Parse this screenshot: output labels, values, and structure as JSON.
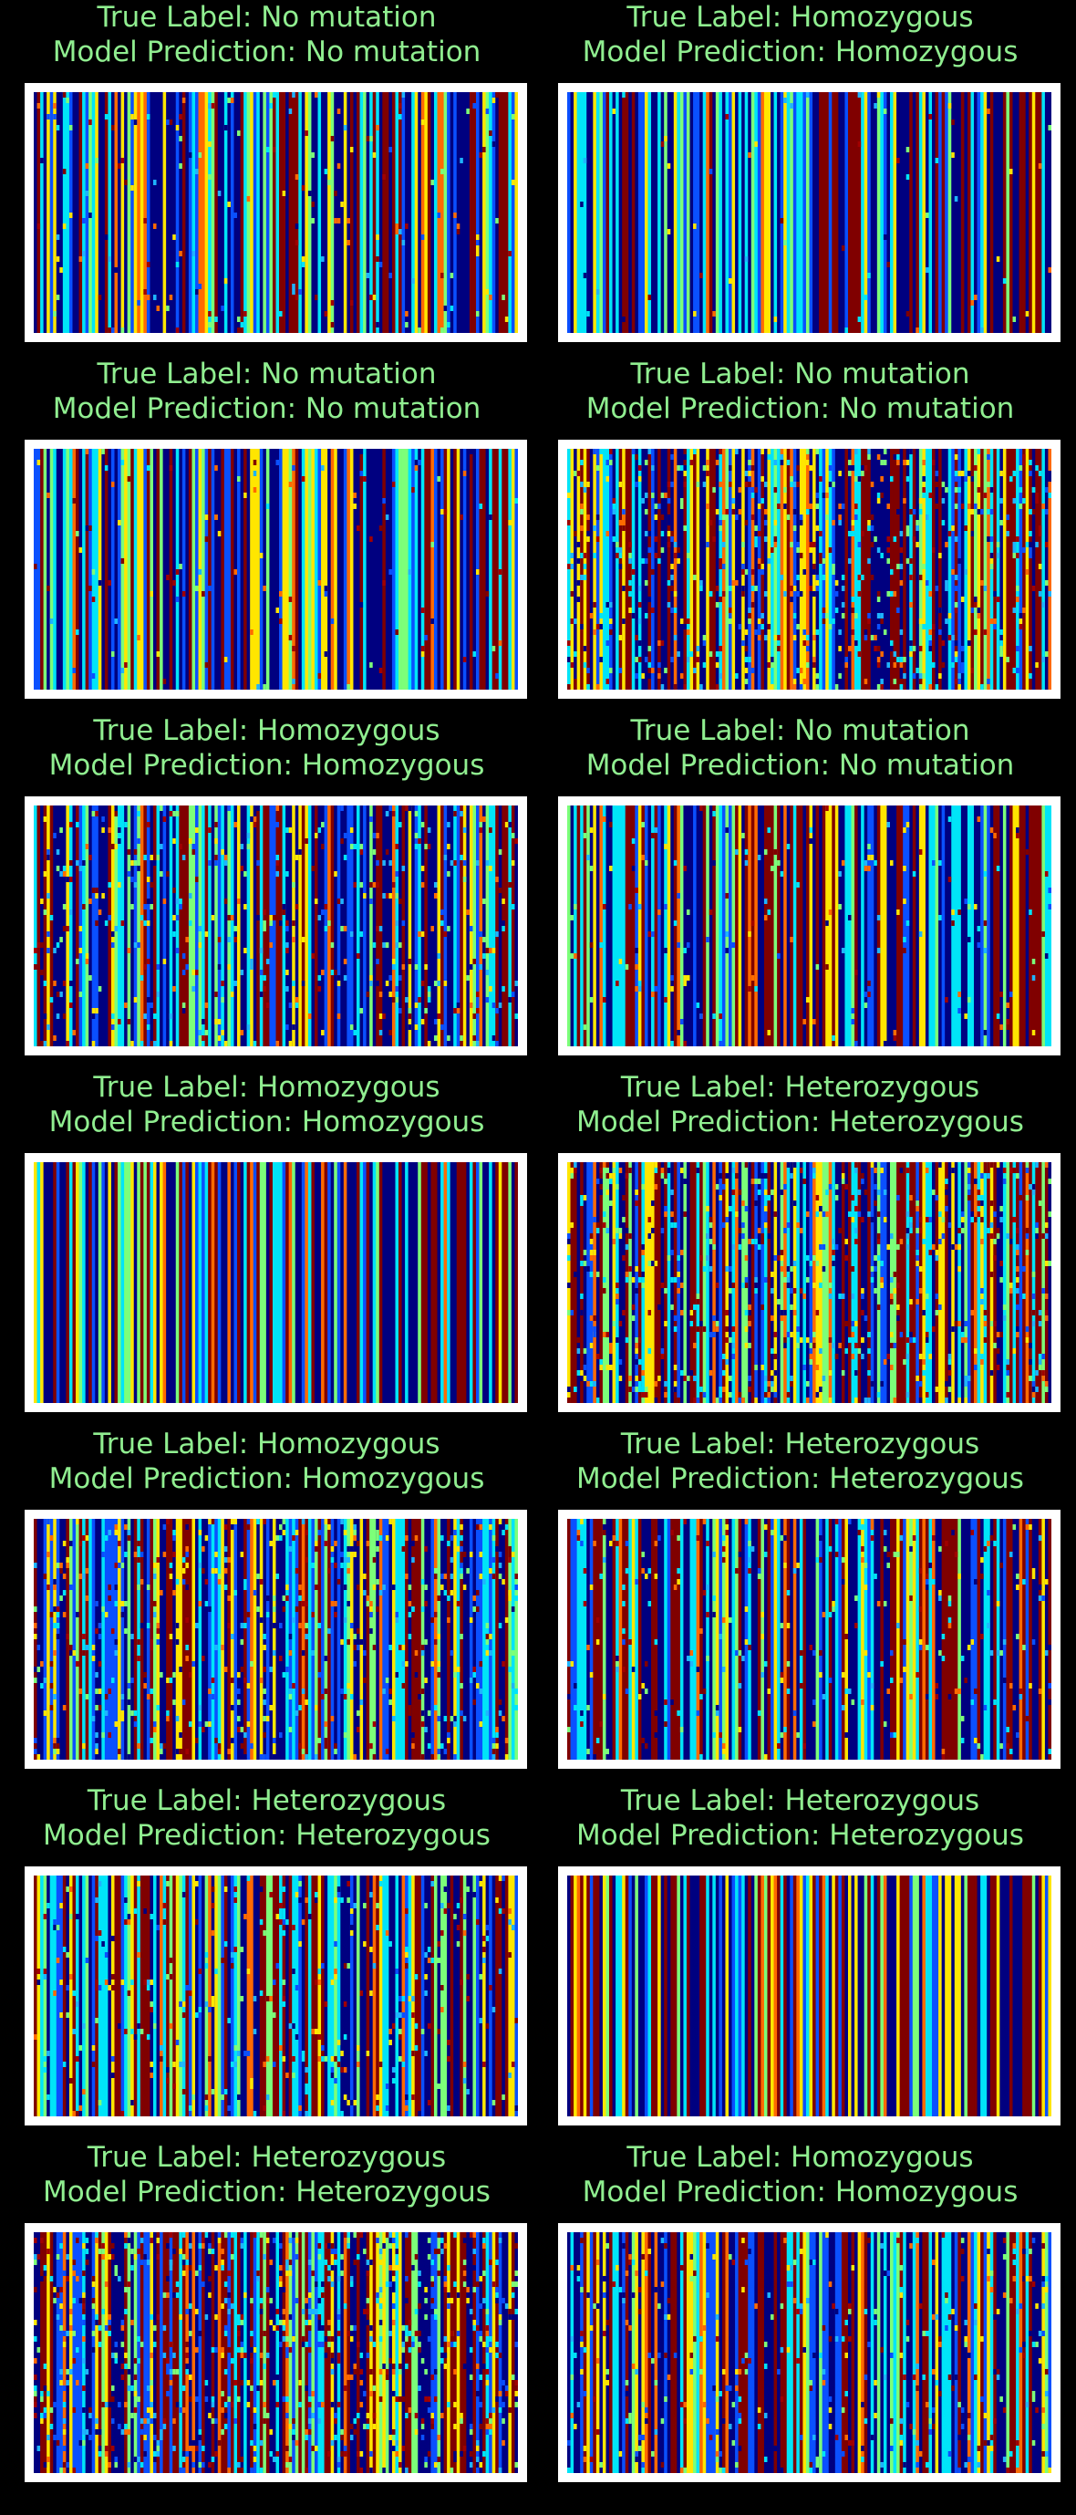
{
  "figure": {
    "background": "#000000",
    "title_color": "#90EE90",
    "frame_color": "#ffffff",
    "colormap": "jet",
    "palette": [
      "#000080",
      "#0A50FF",
      "#1EB4FF",
      "#00E4F8",
      "#7CFF79",
      "#FFE600",
      "#FF6A00",
      "#A00000",
      "#800000"
    ]
  },
  "chart_data": [
    {
      "type": "heatmap",
      "title_line1": "True Label: No mutation",
      "title_line2": "Model Prediction: No mutation",
      "noise": 0.03
    },
    {
      "type": "heatmap",
      "title_line1": "True Label: Homozygous",
      "title_line2": "Model Prediction: Homozygous",
      "noise": 0.01
    },
    {
      "type": "heatmap",
      "title_line1": "True Label: No mutation",
      "title_line2": "Model Prediction: No mutation",
      "noise": 0.02
    },
    {
      "type": "heatmap",
      "title_line1": "True Label: No mutation",
      "title_line2": "Model Prediction: No mutation",
      "noise": 0.12
    },
    {
      "type": "heatmap",
      "title_line1": "True Label: Homozygous",
      "title_line2": "Model Prediction: Homozygous",
      "noise": 0.08
    },
    {
      "type": "heatmap",
      "title_line1": "True Label: No mutation",
      "title_line2": "Model Prediction: No mutation",
      "noise": 0.03
    },
    {
      "type": "heatmap",
      "title_line1": "True Label: Homozygous",
      "title_line2": "Model Prediction: Homozygous",
      "noise": 0.0
    },
    {
      "type": "heatmap",
      "title_line1": "True Label: Heterozygous",
      "title_line2": "Model Prediction: Heterozygous",
      "noise": 0.12
    },
    {
      "type": "heatmap",
      "title_line1": "True Label: Homozygous",
      "title_line2": "Model Prediction: Homozygous",
      "noise": 0.1
    },
    {
      "type": "heatmap",
      "title_line1": "True Label: Heterozygous",
      "title_line2": "Model Prediction: Heterozygous",
      "noise": 0.05
    },
    {
      "type": "heatmap",
      "title_line1": "True Label: Heterozygous",
      "title_line2": "Model Prediction: Heterozygous",
      "noise": 0.06
    },
    {
      "type": "heatmap",
      "title_line1": "True Label: Heterozygous",
      "title_line2": "Model Prediction: Heterozygous",
      "noise": 0.0
    },
    {
      "type": "heatmap",
      "title_line1": "True Label: Heterozygous",
      "title_line2": "Model Prediction: Heterozygous",
      "noise": 0.14
    },
    {
      "type": "heatmap",
      "title_line1": "True Label: Homozygous",
      "title_line2": "Model Prediction: Homozygous",
      "noise": 0.06
    }
  ]
}
